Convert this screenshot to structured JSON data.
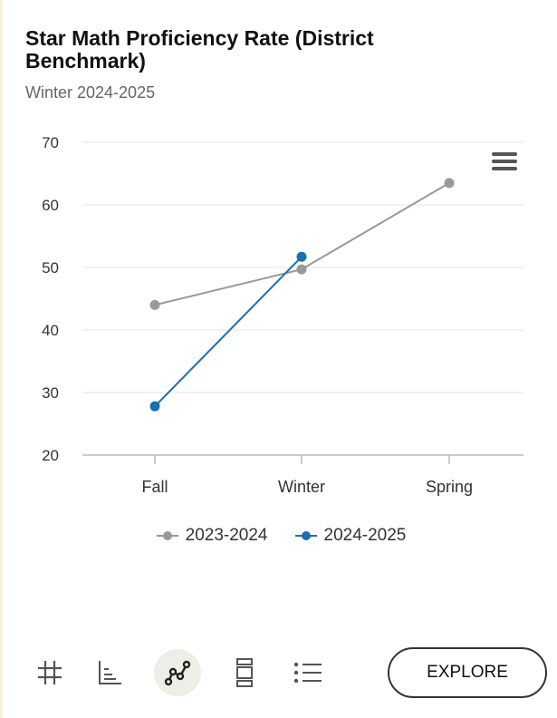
{
  "header": {
    "title": "Star Math Proficiency Rate (District Benchmark)",
    "subtitle": "Winter 2024-2025"
  },
  "chart_data": {
    "type": "line",
    "x": [
      "Fall",
      "Winter",
      "Spring"
    ],
    "ylim": [
      20,
      70
    ],
    "yticks": [
      20,
      30,
      40,
      50,
      60,
      70
    ],
    "grid": true,
    "legend_placement": "bottom",
    "series": [
      {
        "name": "2023-2024",
        "color": "#999999",
        "values": [
          44,
          49.7,
          63.5
        ]
      },
      {
        "name": "2024-2025",
        "color": "#1a6faf",
        "values": [
          27.8,
          51.7,
          null
        ]
      }
    ]
  },
  "toolbar": {
    "tools": [
      {
        "icon": "hash-icon"
      },
      {
        "icon": "bar-chart-icon"
      },
      {
        "icon": "line-chart-icon",
        "active": true
      },
      {
        "icon": "stacked-boxes-icon"
      },
      {
        "icon": "list-icon"
      }
    ],
    "explore_label": "EXPLORE"
  },
  "menu": {
    "icon": "hamburger-menu-icon"
  }
}
